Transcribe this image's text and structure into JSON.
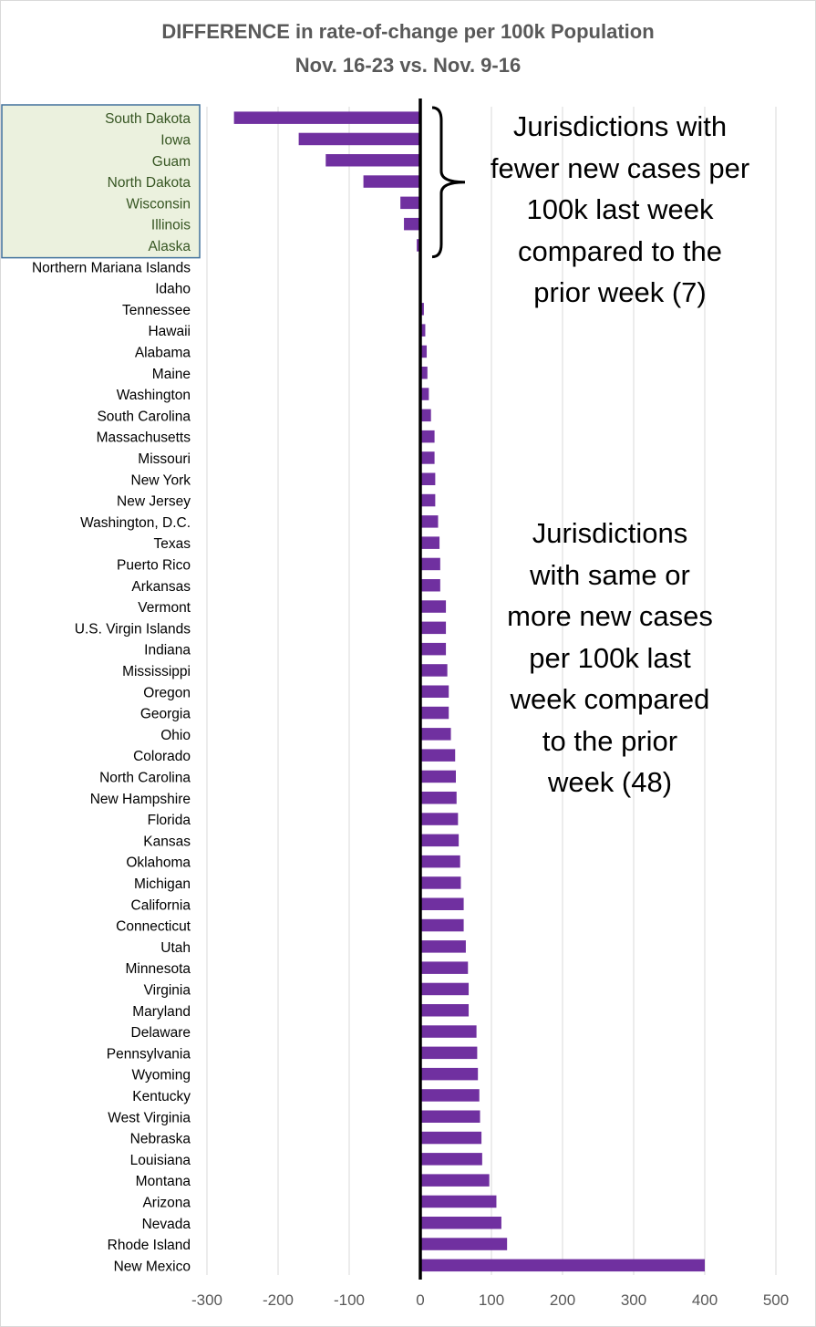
{
  "chart_data": {
    "type": "bar",
    "orientation": "horizontal",
    "title": "DIFFERENCE in rate-of-change per 100k Population",
    "subtitle": "Nov. 16-23 vs. Nov. 9-16",
    "xlim": [
      -300,
      500
    ],
    "xticks": [
      -300,
      -200,
      -100,
      0,
      100,
      200,
      300,
      400,
      500
    ],
    "grid": "vertical",
    "bar_color": "#7030a0",
    "highlight_color": "#ebf1de",
    "highlight_border_color": "#41719c",
    "categories": [
      "South Dakota",
      "Iowa",
      "Guam",
      "North Dakota",
      "Wisconsin",
      "Illinois",
      "Alaska",
      "Northern Mariana Islands",
      "Idaho",
      "Tennessee",
      "Hawaii",
      "Alabama",
      "Maine",
      "Washington",
      "South Carolina",
      "Massachusetts",
      "Missouri",
      "New York",
      "New Jersey",
      "Washington, D.C.",
      "Texas",
      "Puerto Rico",
      "Arkansas",
      "Vermont",
      "U.S. Virgin Islands",
      "Indiana",
      "Mississippi",
      "Oregon",
      "Georgia",
      "Ohio",
      "Colorado",
      "North Carolina",
      "New Hampshire",
      "Florida",
      "Kansas",
      "Oklahoma",
      "Michigan",
      "California",
      "Connecticut",
      "Utah",
      "Minnesota",
      "Virginia",
      "Maryland",
      "Delaware",
      "Pennsylvania",
      "Wyoming",
      "Kentucky",
      "West Virginia",
      "Nebraska",
      "Louisiana",
      "Montana",
      "Arizona",
      "Nevada",
      "Rhode Island",
      "New Mexico"
    ],
    "values": [
      -262,
      -171,
      -133,
      -80,
      -28,
      -23,
      -5,
      0,
      0,
      5,
      7,
      9,
      10,
      12,
      15,
      20,
      20,
      21,
      21,
      25,
      27,
      28,
      28,
      36,
      36,
      36,
      38,
      40,
      40,
      43,
      49,
      50,
      51,
      53,
      54,
      56,
      57,
      61,
      61,
      64,
      67,
      68,
      68,
      79,
      80,
      81,
      83,
      84,
      86,
      87,
      97,
      107,
      114,
      122,
      400
    ],
    "highlighted_count": 7
  },
  "annotations": {
    "top_lines": [
      "Jurisdictions with",
      "fewer new cases per",
      "100k last week",
      "compared to the",
      "prior week (7)"
    ],
    "bottom_lines": [
      "Jurisdictions",
      "with same or",
      "more new cases",
      "per 100k last",
      "week compared",
      "to the prior",
      "week (48)"
    ]
  }
}
